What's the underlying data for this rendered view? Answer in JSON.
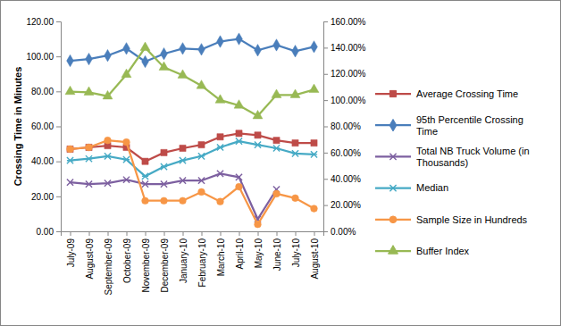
{
  "chart_data": {
    "type": "line",
    "y_label": "Crossing Time in Minutes",
    "categories": [
      "July-09",
      "August-09",
      "September-09",
      "October-09",
      "November-09",
      "December-09",
      "January-10",
      "February-10",
      "March-10",
      "April-10",
      "May-10",
      "June-10",
      "July-10",
      "August-10"
    ],
    "ylim": [
      0,
      120
    ],
    "yticks": [
      {
        "value": 0,
        "label": "0.00"
      },
      {
        "value": 20,
        "label": "20.00"
      },
      {
        "value": 40,
        "label": "40.00"
      },
      {
        "value": 60,
        "label": "60.00"
      },
      {
        "value": 80,
        "label": "80.00"
      },
      {
        "value": 100,
        "label": "100.00"
      },
      {
        "value": 120,
        "label": "120.00"
      }
    ],
    "y2lim": [
      0,
      160
    ],
    "y2ticks": [
      {
        "value": 0,
        "label": "0.00%"
      },
      {
        "value": 20,
        "label": "20.00%"
      },
      {
        "value": 40,
        "label": "40.00%"
      },
      {
        "value": 60,
        "label": "60.00%"
      },
      {
        "value": 80,
        "label": "80.00%"
      },
      {
        "value": 100,
        "label": "100.00%"
      },
      {
        "value": 120,
        "label": "120.00%"
      },
      {
        "value": 140,
        "label": "140.00%"
      },
      {
        "value": 160,
        "label": "160.00%"
      }
    ],
    "grid": false,
    "legend": "right",
    "series": [
      {
        "name": "Average Crossing Time",
        "color": "#be4b48",
        "marker": "square",
        "line_style": "solid",
        "values": [
          47,
          48,
          49,
          48,
          40,
          45,
          47.5,
          49.5,
          54,
          56,
          55,
          52,
          50.5,
          50.5
        ]
      },
      {
        "name": "95th Percentile Crossing Time",
        "color": "#4a7ebb",
        "marker": "diamond",
        "line_style": "solid",
        "values": [
          97.5,
          98.5,
          100.5,
          104.5,
          97,
          101.5,
          104.5,
          104,
          108.5,
          110,
          103.5,
          106.5,
          103,
          105.5
        ]
      },
      {
        "name": "Total NB Truck Volume (in Thousands)",
        "color": "#7d60a0",
        "marker": "x",
        "line_style": "solid",
        "values": [
          28,
          27,
          27.5,
          29.5,
          27,
          27,
          29,
          29,
          33,
          31,
          7,
          24,
          null,
          null
        ]
      },
      {
        "name": "Median",
        "color": "#46aac5",
        "marker": "asterisk",
        "line_style": "solid",
        "values": [
          40.5,
          41.5,
          43,
          41,
          31.5,
          37,
          40.5,
          43,
          48,
          51.5,
          49.5,
          47.5,
          44.5,
          44
        ]
      },
      {
        "name": "Sample Size in Hundreds",
        "color": "#f79646",
        "marker": "circle",
        "line_style": "solid",
        "values": [
          47,
          48,
          52,
          51,
          17.5,
          17.5,
          17.5,
          22.5,
          17,
          25.5,
          4,
          21.5,
          19,
          13
        ]
      },
      {
        "name": "Buffer Index",
        "color": "#98b954",
        "marker": "triangle",
        "line_style": "solid",
        "axis": "y2",
        "values": [
          106.5,
          106,
          103,
          119.5,
          140,
          125,
          119,
          111,
          100,
          96,
          88,
          104,
          104,
          108
        ]
      }
    ]
  }
}
